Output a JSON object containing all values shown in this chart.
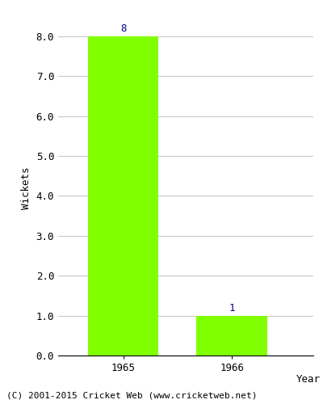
{
  "categories": [
    "1965",
    "1966"
  ],
  "values": [
    8,
    1
  ],
  "bar_color": "#80ff00",
  "bar_edgecolor": "#80ff00",
  "xlabel": "Year",
  "ylabel": "Wickets",
  "ylim": [
    0,
    8.4
  ],
  "yticks": [
    0.0,
    1.0,
    2.0,
    3.0,
    4.0,
    5.0,
    6.0,
    7.0,
    8.0
  ],
  "label_color": "#000080",
  "label_fontsize": 9,
  "xlabel_fontsize": 9,
  "ylabel_fontsize": 9,
  "tick_fontsize": 9,
  "footer_text": "(C) 2001-2015 Cricket Web (www.cricketweb.net)",
  "footer_fontsize": 8,
  "background_color": "#ffffff",
  "grid_color": "#c8c8c8",
  "bar_width": 0.65
}
